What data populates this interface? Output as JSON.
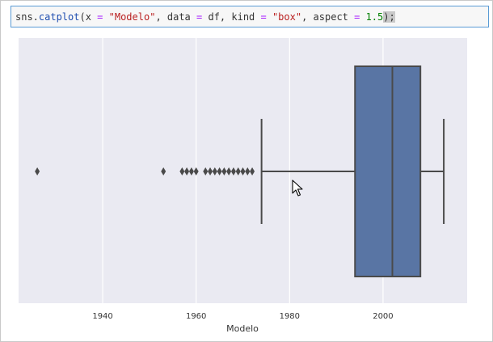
{
  "code": {
    "prefix": "sns.",
    "function": "catplot",
    "open_paren": "(",
    "arg1_name": "x ",
    "eq1": "=",
    "arg1_value": " \"Modelo\"",
    "sep1": ", data ",
    "eq2": "=",
    "arg2_value": " df, kind ",
    "eq3": "=",
    "arg3_value": " \"box\"",
    "sep3": ", aspect ",
    "eq4": "=",
    "arg4_value": " 1.5",
    "close": ");"
  },
  "chart_data": {
    "type": "box",
    "orientation": "horizontal",
    "xlabel": "Modelo",
    "xlim": [
      1922,
      2018
    ],
    "x_ticks": [
      1940,
      1960,
      1980,
      2000
    ],
    "x_tick_labels": [
      "1940",
      "1960",
      "1980",
      "2000"
    ],
    "grid": "vertical",
    "box": {
      "q1": 1994,
      "median": 2002,
      "q3": 2008,
      "whisker_low": 1974,
      "whisker_high": 2013,
      "color": "#5975a4"
    },
    "outliers": [
      1926,
      1953,
      1957,
      1958,
      1959,
      1960,
      1962,
      1963,
      1964,
      1965,
      1966,
      1967,
      1968,
      1969,
      1970,
      1971,
      1972
    ],
    "colors": {
      "background": "#eaeaf2",
      "grid": "#ffffff",
      "line": "#4a4a4a"
    }
  }
}
